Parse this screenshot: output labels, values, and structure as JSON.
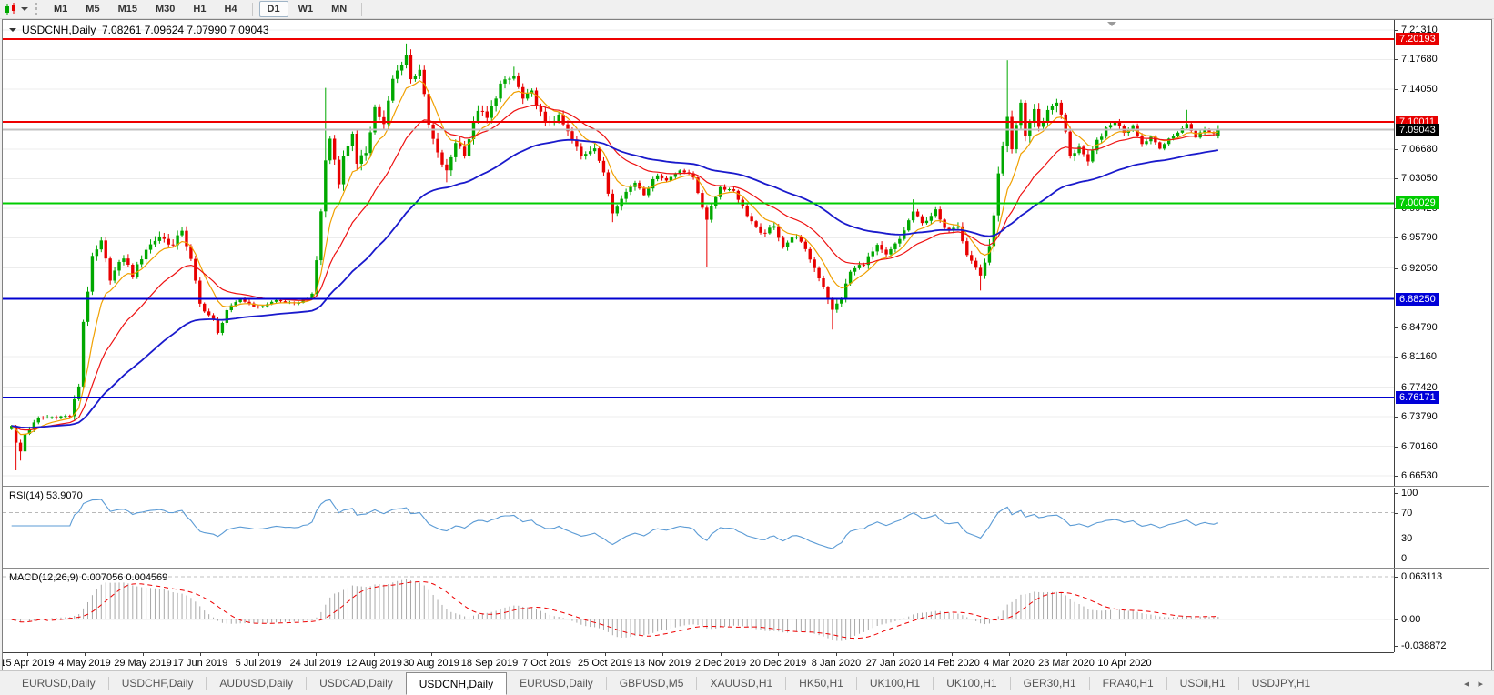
{
  "toolbar": {
    "chart_type_icon": "candlestick-chart-icon",
    "timeframes": [
      {
        "label": "M1",
        "active": false
      },
      {
        "label": "M5",
        "active": false
      },
      {
        "label": "M15",
        "active": false
      },
      {
        "label": "M30",
        "active": false
      },
      {
        "label": "H1",
        "active": false
      },
      {
        "label": "H4",
        "active": false,
        "sep_after": true
      },
      {
        "label": "D1",
        "active": true
      },
      {
        "label": "W1",
        "active": false
      },
      {
        "label": "MN",
        "active": false,
        "sep_after": true
      }
    ]
  },
  "window": {
    "title_text": "USDCNH,Daily  7.08261 7.09624 7.07990 7.09043",
    "rsi_label": "RSI(14) 53.9070",
    "macd_label": "MACD(12,26,9) 0.007056 0.004569"
  },
  "tab_bar": {
    "tabs": [
      {
        "label": "EURUSD,Daily",
        "active": false
      },
      {
        "label": "USDCHF,Daily",
        "active": false
      },
      {
        "label": "AUDUSD,Daily",
        "active": false
      },
      {
        "label": "USDCAD,Daily",
        "active": false
      },
      {
        "label": "USDCNH,Daily",
        "active": true
      },
      {
        "label": "EURUSD,Daily",
        "active": false
      },
      {
        "label": "GBPUSD,M5",
        "active": false
      },
      {
        "label": "XAUUSD,H1",
        "active": false
      },
      {
        "label": "HK50,H1",
        "active": false
      },
      {
        "label": "UK100,H1",
        "active": false
      },
      {
        "label": "UK100,H1",
        "active": false
      },
      {
        "label": "GER30,H1",
        "active": false
      },
      {
        "label": "FRA40,H1",
        "active": false
      },
      {
        "label": "USOil,H1",
        "active": false
      },
      {
        "label": "USDJPY,H1",
        "active": false
      }
    ],
    "arrows": [
      "◂",
      "▸"
    ]
  },
  "chart_data": {
    "type": "candlestick",
    "symbol": "USDCNH",
    "timeframe": "Daily",
    "ohlc_current": {
      "open": 7.08261,
      "high": 7.09624,
      "low": 7.0799,
      "close": 7.09043
    },
    "up_color": "#00a800",
    "down_color": "#e80000",
    "grid_color": "#ececec",
    "price_axis_ticks": [
      "7.21310",
      "7.17680",
      "7.14050",
      "7.06680",
      "7.03050",
      "6.99420",
      "6.95790",
      "6.92050",
      "6.84790",
      "6.81160",
      "6.77420",
      "6.73790",
      "6.70160",
      "6.66530"
    ],
    "levels": [
      {
        "price": 7.20193,
        "color": "#ee0000",
        "w": 2
      },
      {
        "price": 7.10011,
        "color": "#ee0000",
        "w": 2
      },
      {
        "price": 7.09043,
        "color": "#c0c0c0",
        "w": 2
      },
      {
        "price": 7.00029,
        "color": "#00cc00",
        "w": 2
      },
      {
        "price": 6.8825,
        "color": "#0000d0",
        "w": 2
      },
      {
        "price": 6.76171,
        "color": "#0000d0",
        "w": 2
      }
    ],
    "badges": [
      {
        "text": "7.20193",
        "price": 7.20193,
        "bg": "#e80000",
        "fg": "#ffffff"
      },
      {
        "text": "7.10011",
        "price": 7.10011,
        "bg": "#e80000",
        "fg": "#ffffff"
      },
      {
        "text": "7.09043",
        "price": 7.09043,
        "bg": "#000000",
        "fg": "#ffffff"
      },
      {
        "text": "7.00029",
        "price": 7.00029,
        "bg": "#00cc00",
        "fg": "#ffffff"
      },
      {
        "text": "6.88250",
        "price": 6.8825,
        "bg": "#0000d8",
        "fg": "#ffffff"
      },
      {
        "text": "6.76171",
        "price": 6.76171,
        "bg": "#0000d8",
        "fg": "#ffffff"
      }
    ],
    "dates": [
      "15 Apr 2019",
      "4 May 2019",
      "29 May 2019",
      "17 Jun 2019",
      "5 Jul 2019",
      "24 Jul 2019",
      "12 Aug 2019",
      "30 Aug 2019",
      "18 Sep 2019",
      "7 Oct 2019",
      "25 Oct 2019",
      "13 Nov 2019",
      "2 Dec 2019",
      "20 Dec 2019",
      "8 Jan 2020",
      "27 Jan 2020",
      "14 Feb 2020",
      "4 Mar 2020",
      "23 Mar 2020",
      "10 Apr 2020"
    ],
    "bar_count": 270,
    "close_keyframes": [
      [
        0,
        6.728
      ],
      [
        1,
        6.705
      ],
      [
        2,
        6.695
      ],
      [
        3,
        6.717
      ],
      [
        6,
        6.736
      ],
      [
        13,
        6.739
      ],
      [
        15,
        6.776
      ],
      [
        16,
        6.855
      ],
      [
        18,
        6.932
      ],
      [
        20,
        6.952
      ],
      [
        22,
        6.908
      ],
      [
        25,
        6.934
      ],
      [
        27,
        6.912
      ],
      [
        30,
        6.944
      ],
      [
        33,
        6.96
      ],
      [
        36,
        6.948
      ],
      [
        38,
        6.968
      ],
      [
        40,
        6.93
      ],
      [
        42,
        6.876
      ],
      [
        45,
        6.856
      ],
      [
        46,
        6.84
      ],
      [
        48,
        6.869
      ],
      [
        51,
        6.882
      ],
      [
        55,
        6.872
      ],
      [
        59,
        6.881
      ],
      [
        63,
        6.876
      ],
      [
        67,
        6.887
      ],
      [
        68,
        6.93
      ],
      [
        70,
        7.052
      ],
      [
        71,
        7.08
      ],
      [
        73,
        7.028
      ],
      [
        74,
        7.056
      ],
      [
        76,
        7.088
      ],
      [
        77,
        7.046
      ],
      [
        79,
        7.064
      ],
      [
        81,
        7.118
      ],
      [
        83,
        7.096
      ],
      [
        85,
        7.152
      ],
      [
        88,
        7.183
      ],
      [
        89,
        7.152
      ],
      [
        91,
        7.166
      ],
      [
        93,
        7.096
      ],
      [
        95,
        7.06
      ],
      [
        97,
        7.038
      ],
      [
        99,
        7.076
      ],
      [
        101,
        7.062
      ],
      [
        104,
        7.116
      ],
      [
        106,
        7.104
      ],
      [
        109,
        7.146
      ],
      [
        112,
        7.156
      ],
      [
        114,
        7.128
      ],
      [
        116,
        7.136
      ],
      [
        119,
        7.098
      ],
      [
        122,
        7.106
      ],
      [
        125,
        7.078
      ],
      [
        127,
        7.058
      ],
      [
        130,
        7.07
      ],
      [
        132,
        7.036
      ],
      [
        134,
        6.989
      ],
      [
        136,
        7.008
      ],
      [
        139,
        7.026
      ],
      [
        141,
        7.012
      ],
      [
        144,
        7.036
      ],
      [
        146,
        7.028
      ],
      [
        149,
        7.042
      ],
      [
        152,
        7.032
      ],
      [
        155,
        6.978
      ],
      [
        156,
        6.998
      ],
      [
        158,
        7.02
      ],
      [
        161,
        7.016
      ],
      [
        164,
        6.986
      ],
      [
        167,
        6.962
      ],
      [
        170,
        6.971
      ],
      [
        172,
        6.948
      ],
      [
        175,
        6.961
      ],
      [
        178,
        6.932
      ],
      [
        181,
        6.898
      ],
      [
        183,
        6.868
      ],
      [
        185,
        6.884
      ],
      [
        187,
        6.916
      ],
      [
        190,
        6.927
      ],
      [
        193,
        6.947
      ],
      [
        195,
        6.936
      ],
      [
        198,
        6.956
      ],
      [
        201,
        6.99
      ],
      [
        203,
        6.975
      ],
      [
        206,
        6.991
      ],
      [
        208,
        6.968
      ],
      [
        211,
        6.974
      ],
      [
        213,
        6.938
      ],
      [
        216,
        6.912
      ],
      [
        218,
        6.944
      ],
      [
        220,
        7.034
      ],
      [
        222,
        7.102
      ],
      [
        223,
        7.064
      ],
      [
        225,
        7.123
      ],
      [
        226,
        7.084
      ],
      [
        228,
        7.116
      ],
      [
        229,
        7.092
      ],
      [
        231,
        7.114
      ],
      [
        233,
        7.126
      ],
      [
        235,
        7.088
      ],
      [
        236,
        7.056
      ],
      [
        238,
        7.071
      ],
      [
        240,
        7.049
      ],
      [
        242,
        7.077
      ],
      [
        244,
        7.091
      ],
      [
        246,
        7.101
      ],
      [
        248,
        7.088
      ],
      [
        250,
        7.097
      ],
      [
        252,
        7.073
      ],
      [
        254,
        7.082
      ],
      [
        256,
        7.069
      ],
      [
        258,
        7.078
      ],
      [
        260,
        7.088
      ],
      [
        262,
        7.097
      ],
      [
        264,
        7.082
      ],
      [
        266,
        7.091
      ],
      [
        268,
        7.086
      ],
      [
        269,
        7.0904
      ]
    ],
    "noise_amp_keyframes": [
      [
        0,
        0.006
      ],
      [
        12,
        0.004
      ],
      [
        16,
        0.011
      ],
      [
        22,
        0.009
      ],
      [
        40,
        0.009
      ],
      [
        48,
        0.004
      ],
      [
        66,
        0.0035
      ],
      [
        70,
        0.013
      ],
      [
        88,
        0.012
      ],
      [
        112,
        0.01
      ],
      [
        132,
        0.008
      ],
      [
        145,
        0.005
      ],
      [
        158,
        0.006
      ],
      [
        176,
        0.007
      ],
      [
        185,
        0.008
      ],
      [
        205,
        0.006
      ],
      [
        214,
        0.008
      ],
      [
        219,
        0.013
      ],
      [
        231,
        0.012
      ],
      [
        242,
        0.007
      ],
      [
        256,
        0.005
      ],
      [
        269,
        0.004
      ]
    ],
    "spikes": [
      {
        "i": 1,
        "low": 6.672
      },
      {
        "i": 2,
        "low": 6.684
      },
      {
        "i": 70,
        "high": 7.142
      },
      {
        "i": 88,
        "high": 7.1965
      },
      {
        "i": 97,
        "low": 7.026
      },
      {
        "i": 112,
        "high": 7.168
      },
      {
        "i": 134,
        "low": 6.977
      },
      {
        "i": 155,
        "low": 6.922
      },
      {
        "i": 183,
        "low": 6.845
      },
      {
        "i": 201,
        "high": 7.005
      },
      {
        "i": 216,
        "low": 6.893
      },
      {
        "i": 222,
        "high": 7.176
      },
      {
        "i": 262,
        "high": 7.115
      }
    ],
    "moving_averages": [
      {
        "period": 8,
        "color": "#f0a000",
        "width": 1.2
      },
      {
        "period": 21,
        "color": "#ee1111",
        "width": 1.2
      },
      {
        "period": 55,
        "color": "#1a1acc",
        "width": 1.8
      }
    ],
    "rsi": {
      "period": 14,
      "current": 53.907,
      "color": "#5b9bd5",
      "levels": [
        70,
        30
      ],
      "ticks": [
        "100",
        "70",
        "30",
        "0"
      ]
    },
    "macd": {
      "fast": 12,
      "slow": 26,
      "signal": 9,
      "current_main": 0.007056,
      "current_signal": 0.004569,
      "ticks": [
        "0.063113",
        "0.00",
        "-0.038872"
      ],
      "histogram_color": "#a8a8a8",
      "signal_color": "#ee0000"
    }
  }
}
